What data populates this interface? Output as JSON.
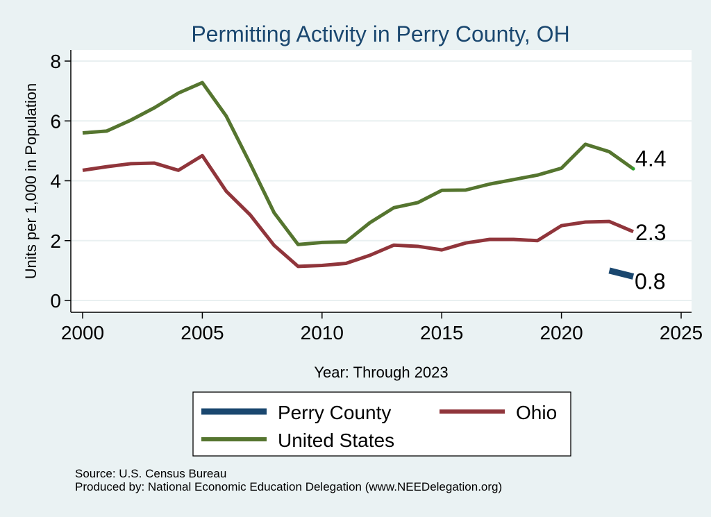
{
  "chart_data": {
    "type": "line",
    "title": "Permitting Activity in Perry County, OH",
    "xlabel": "Year: Through 2023",
    "ylabel": "Units per 1,000 in Population",
    "xlim": [
      2000,
      2025
    ],
    "ylim": [
      0,
      8
    ],
    "x_ticks": [
      2000,
      2005,
      2010,
      2015,
      2020,
      2025
    ],
    "y_ticks": [
      0,
      2,
      4,
      6,
      8
    ],
    "grid": "horizontal",
    "legend_position": "bottom",
    "series": [
      {
        "name": "Perry County",
        "color": "#1a476f",
        "x": [
          2022,
          2023
        ],
        "values": [
          1.0,
          0.8
        ],
        "end_label": "0.8"
      },
      {
        "name": "Ohio",
        "color": "#90353b",
        "x": [
          2000,
          2001,
          2002,
          2003,
          2004,
          2005,
          2006,
          2007,
          2008,
          2009,
          2010,
          2011,
          2012,
          2013,
          2014,
          2015,
          2016,
          2017,
          2018,
          2019,
          2020,
          2021,
          2022,
          2023
        ],
        "values": [
          4.35,
          4.47,
          4.57,
          4.59,
          4.35,
          4.84,
          3.65,
          2.86,
          1.84,
          1.14,
          1.17,
          1.24,
          1.51,
          1.85,
          1.81,
          1.69,
          1.92,
          2.04,
          2.04,
          2.0,
          2.5,
          2.62,
          2.64,
          2.3
        ],
        "end_label": "2.3"
      },
      {
        "name": "United States",
        "color": "#55752f",
        "x": [
          2000,
          2001,
          2002,
          2003,
          2004,
          2005,
          2006,
          2007,
          2008,
          2009,
          2010,
          2011,
          2012,
          2013,
          2014,
          2015,
          2016,
          2017,
          2018,
          2019,
          2020,
          2021,
          2022,
          2023
        ],
        "values": [
          5.6,
          5.66,
          6.02,
          6.44,
          6.93,
          7.28,
          6.16,
          4.57,
          2.93,
          1.87,
          1.94,
          1.96,
          2.6,
          3.1,
          3.27,
          3.68,
          3.69,
          3.89,
          4.04,
          4.19,
          4.42,
          5.22,
          4.97,
          4.4
        ],
        "end_label": "4.4"
      }
    ]
  },
  "legend": {
    "items": [
      "Perry County",
      "Ohio",
      "United States"
    ]
  },
  "notes": {
    "source": "Source: U.S. Census Bureau",
    "produced_by": "Produced by: National Economic Education Delegation (www.NEEDelegation.org)"
  }
}
